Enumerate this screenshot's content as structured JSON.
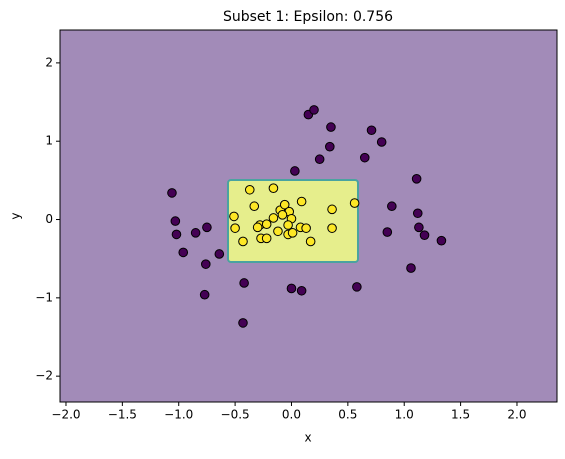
{
  "chart_data": {
    "type": "scatter",
    "title": "Subset 1: Epsilon: 0.756",
    "x_label": "x",
    "y_label": "y",
    "xlim": [
      -2.053,
      2.355
    ],
    "ylim": [
      -2.33,
      2.42
    ],
    "xticks": [
      {
        "value": -2,
        "label": "−2.0"
      },
      {
        "value": -1.5,
        "label": "−1.5"
      },
      {
        "value": -1,
        "label": "−1.0"
      },
      {
        "value": -0.5,
        "label": "−0.5"
      },
      {
        "value": 0,
        "label": "0.0"
      },
      0.5,
      {
        "value": 1,
        "label": "1.0"
      },
      1.5,
      {
        "value": 2,
        "label": "2.0"
      }
    ],
    "yticks": [
      {
        "value": -2,
        "label": "−2"
      },
      {
        "value": -1,
        "label": "−1"
      },
      0,
      1,
      2
    ],
    "background_color": "#a28bb8",
    "region": {
      "x": [
        -0.563,
        0.59
      ],
      "y": [
        -0.543,
        0.505
      ],
      "color": "#e6ee8c",
      "edge_color": "#4aa3a0"
    },
    "series": [
      {
        "color": "#440154",
        "x": [
          -1.06,
          -1.03,
          -1.02,
          -0.96,
          -0.85,
          -0.75,
          -0.76,
          -0.77,
          -0.64,
          -0.42,
          -0.43,
          0.0,
          0.09,
          0.58,
          1.06,
          0.15,
          0.2,
          0.35,
          0.34,
          0.25,
          0.03,
          0.71,
          0.8,
          0.65,
          0.89,
          0.85,
          1.11,
          1.12,
          1.13,
          1.18,
          1.33
        ],
        "values": [
          0.34,
          -0.02,
          -0.19,
          -0.42,
          -0.17,
          -0.1,
          -0.57,
          -0.96,
          -0.44,
          -0.81,
          -1.32,
          -0.88,
          -0.91,
          -0.86,
          -0.62,
          1.34,
          1.4,
          1.18,
          0.93,
          0.77,
          0.62,
          1.14,
          0.99,
          0.79,
          0.17,
          -0.16,
          0.52,
          0.08,
          -0.1,
          -0.2,
          -0.27
        ]
      },
      {
        "color": "#fde725",
        "x": [
          -0.37,
          -0.16,
          -0.51,
          -0.5,
          -0.33,
          -0.28,
          -0.3,
          -0.43,
          -0.27,
          -0.22,
          -0.16,
          -0.22,
          -0.1,
          -0.06,
          -0.02,
          -0.08,
          -0.12,
          -0.03,
          0.01,
          0.0,
          -0.03,
          0.09,
          0.08,
          0.13,
          0.17,
          0.36,
          0.36,
          0.56
        ],
        "values": [
          0.38,
          0.4,
          0.04,
          -0.11,
          0.17,
          -0.07,
          -0.1,
          -0.28,
          -0.24,
          -0.24,
          0.02,
          -0.06,
          0.12,
          0.19,
          0.1,
          0.06,
          -0.15,
          -0.19,
          -0.17,
          0.01,
          -0.07,
          0.23,
          -0.1,
          -0.11,
          -0.28,
          0.13,
          -0.11,
          0.21
        ]
      }
    ]
  }
}
